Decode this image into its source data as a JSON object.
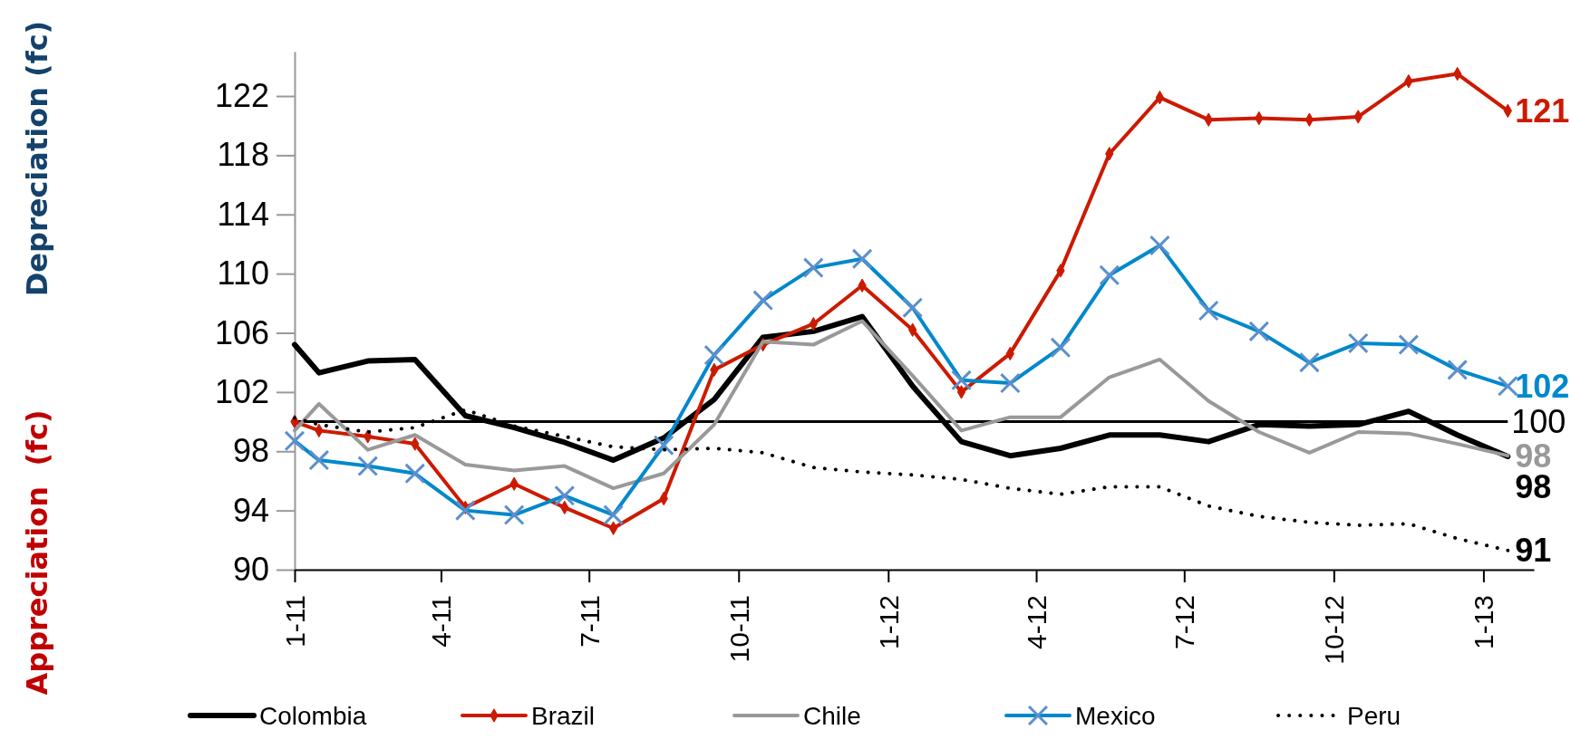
{
  "chart_data": {
    "type": "line",
    "annotations": [
      "Depreciation (fc)",
      "Appreciation  (fc)"
    ],
    "x": [
      "2011-01-01",
      "2011-01-16",
      "2011-02-15",
      "2011-03-16",
      "2011-04-16",
      "2011-05-16",
      "2011-06-16",
      "2011-07-16",
      "2011-08-16",
      "2011-09-16",
      "2011-10-16",
      "2011-11-16",
      "2011-12-16",
      "2012-01-16",
      "2012-02-15",
      "2012-03-16",
      "2012-04-16",
      "2012-05-16",
      "2012-06-16",
      "2012-07-16",
      "2012-08-16",
      "2012-09-16",
      "2012-10-16",
      "2012-11-16",
      "2012-12-16",
      "2013-01-16"
    ],
    "xlim": [
      "2011-01-01",
      "2013-02-01"
    ],
    "xticks": [
      {
        "value": "2011-01",
        "label": "1-11"
      },
      {
        "value": "2011-04",
        "label": "4-11"
      },
      {
        "value": "2011-07",
        "label": "7-11"
      },
      {
        "value": "2011-10",
        "label": "10-11"
      },
      {
        "value": "2012-01",
        "label": "1-12"
      },
      {
        "value": "2012-04",
        "label": "4-12"
      },
      {
        "value": "2012-07",
        "label": "7-12"
      },
      {
        "value": "2012-10",
        "label": "10-12"
      },
      {
        "value": "2013-01",
        "label": "1-13"
      }
    ],
    "ylim": [
      90,
      125
    ],
    "yticks": [
      90,
      94,
      98,
      102,
      106,
      110,
      114,
      118,
      122
    ],
    "grid": false,
    "legend": "bottom",
    "ref_lines": [
      {
        "axis": "y",
        "value": 100,
        "label": "100",
        "color": "#000000"
      }
    ],
    "series": [
      {
        "name": "Colombia",
        "color": "#000000",
        "marker": "none",
        "line_style": "solid",
        "values": [
          105.2,
          103.3,
          104.1,
          104.2,
          100.4,
          99.6,
          98.6,
          97.4,
          98.9,
          101.5,
          105.7,
          106.1,
          107.1,
          102.4,
          98.65,
          97.7,
          98.2,
          99.1,
          99.1,
          98.65,
          99.8,
          99.7,
          99.8,
          100.7,
          99.1,
          97.65
        ],
        "value_labels": [
          null,
          null,
          null,
          null,
          null,
          null,
          null,
          null,
          null,
          null,
          null,
          null,
          null,
          null,
          null,
          null,
          null,
          null,
          null,
          null,
          null,
          null,
          null,
          null,
          null,
          "98"
        ]
      },
      {
        "name": "Brazil",
        "color": "#cc1a00",
        "marker": "diamond",
        "line_style": "solid",
        "values": [
          100,
          99.4,
          99.0,
          98.5,
          94.2,
          95.8,
          94.2,
          92.8,
          94.8,
          103.5,
          105.2,
          106.6,
          109.2,
          106.2,
          102.0,
          104.6,
          110.2,
          118.1,
          121.9,
          120.4,
          120.5,
          120.4,
          120.6,
          123.0,
          123.5,
          121.0
        ],
        "value_labels": [
          null,
          null,
          null,
          null,
          null,
          null,
          null,
          null,
          null,
          null,
          null,
          null,
          null,
          null,
          null,
          null,
          null,
          null,
          null,
          null,
          null,
          null,
          null,
          null,
          null,
          "121"
        ]
      },
      {
        "name": "Chile",
        "color": "#999999",
        "marker": "none",
        "line_style": "solid",
        "values": [
          99.4,
          101.2,
          98.1,
          99.1,
          97.1,
          96.7,
          97.0,
          95.5,
          96.5,
          99.8,
          105.4,
          105.2,
          106.8,
          103.1,
          99.4,
          100.3,
          100.3,
          103.0,
          104.2,
          101.4,
          99.3,
          97.9,
          99.3,
          99.2,
          98.5,
          97.7
        ],
        "value_labels": [
          null,
          null,
          null,
          null,
          null,
          null,
          null,
          null,
          null,
          null,
          null,
          null,
          null,
          null,
          null,
          null,
          null,
          null,
          null,
          null,
          null,
          null,
          null,
          null,
          null,
          "98"
        ]
      },
      {
        "name": "Mexico",
        "color": "#0088cc",
        "marker": "cross",
        "line_style": "solid",
        "values": [
          98.7,
          97.4,
          97.0,
          96.5,
          94.0,
          93.7,
          95.0,
          93.7,
          98.4,
          104.5,
          108.2,
          110.4,
          111.0,
          107.7,
          102.8,
          102.6,
          105.0,
          109.9,
          111.9,
          107.5,
          106.1,
          104.0,
          105.3,
          105.2,
          103.5,
          102.4
        ],
        "value_labels": [
          null,
          null,
          null,
          null,
          null,
          null,
          null,
          null,
          null,
          null,
          null,
          null,
          null,
          null,
          null,
          null,
          null,
          null,
          null,
          null,
          null,
          null,
          null,
          null,
          null,
          "102"
        ]
      },
      {
        "name": "Peru",
        "color": "#000000",
        "marker": "none",
        "line_style": "dotted",
        "values": [
          100.25,
          99.8,
          99.3,
          99.6,
          100.8,
          99.7,
          99.0,
          98.3,
          98.1,
          98.2,
          97.9,
          96.9,
          96.6,
          96.4,
          96.1,
          95.5,
          95.1,
          95.6,
          95.6,
          94.3,
          93.6,
          93.2,
          93.0,
          93.1,
          92.1,
          91.3
        ],
        "value_labels": [
          null,
          null,
          null,
          null,
          null,
          null,
          null,
          null,
          null,
          null,
          null,
          null,
          null,
          null,
          null,
          null,
          null,
          null,
          null,
          null,
          null,
          null,
          null,
          null,
          null,
          "91"
        ]
      }
    ]
  }
}
